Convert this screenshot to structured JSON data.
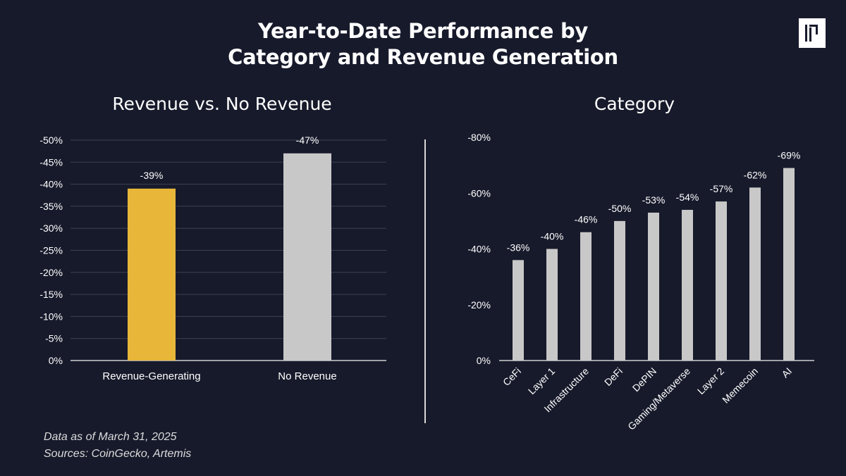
{
  "title": {
    "line1": "Year-to-Date Performance by",
    "line2": "Category and Revenue Generation"
  },
  "logo": {
    "icon": "brand-logo-icon"
  },
  "colors": {
    "background": "#171a2b",
    "revenue_bar": "#e8b73a",
    "gray_bar": "#c8c8c8",
    "grid": "#3d4152",
    "text": "#ffffff"
  },
  "footnote": {
    "line1": "Data as of March 31, 2025",
    "line2": "Sources: CoinGecko, Artemis"
  },
  "chart_data": [
    {
      "type": "bar",
      "title": "Revenue vs. No Revenue",
      "categories": [
        "Revenue-Generating",
        "No Revenue"
      ],
      "values": [
        -39,
        -47
      ],
      "labels": [
        "-39%",
        "-47%"
      ],
      "bar_colors": [
        "#e8b73a",
        "#c8c8c8"
      ],
      "ylim": [
        0,
        -50
      ],
      "yticks": [
        0,
        -5,
        -10,
        -15,
        -20,
        -25,
        -30,
        -35,
        -40,
        -45,
        -50
      ],
      "ytick_labels": [
        "0%",
        "-5%",
        "-10%",
        "-15%",
        "-20%",
        "-25%",
        "-30%",
        "-35%",
        "-40%",
        "-45%",
        "-50%"
      ],
      "grid": true,
      "xlabel": "",
      "ylabel": ""
    },
    {
      "type": "bar",
      "title": "Category",
      "categories": [
        "CeFi",
        "Layer 1",
        "Infrastructure",
        "DeFi",
        "DePIN",
        "Gaming/Metaverse",
        "Layer 2",
        "Memecoin",
        "AI"
      ],
      "values": [
        -36,
        -40,
        -46,
        -50,
        -53,
        -54,
        -57,
        -62,
        -69
      ],
      "labels": [
        "-36%",
        "-40%",
        "-46%",
        "-50%",
        "-53%",
        "-54%",
        "-57%",
        "-62%",
        "-69%"
      ],
      "bar_colors": [
        "#c8c8c8"
      ],
      "ylim": [
        0,
        -80
      ],
      "yticks": [
        0,
        -20,
        -40,
        -60,
        -80
      ],
      "ytick_labels": [
        "0%",
        "-20%",
        "-40%",
        "-60%",
        "-80%"
      ],
      "grid": false,
      "xlabel": "",
      "ylabel": ""
    }
  ]
}
